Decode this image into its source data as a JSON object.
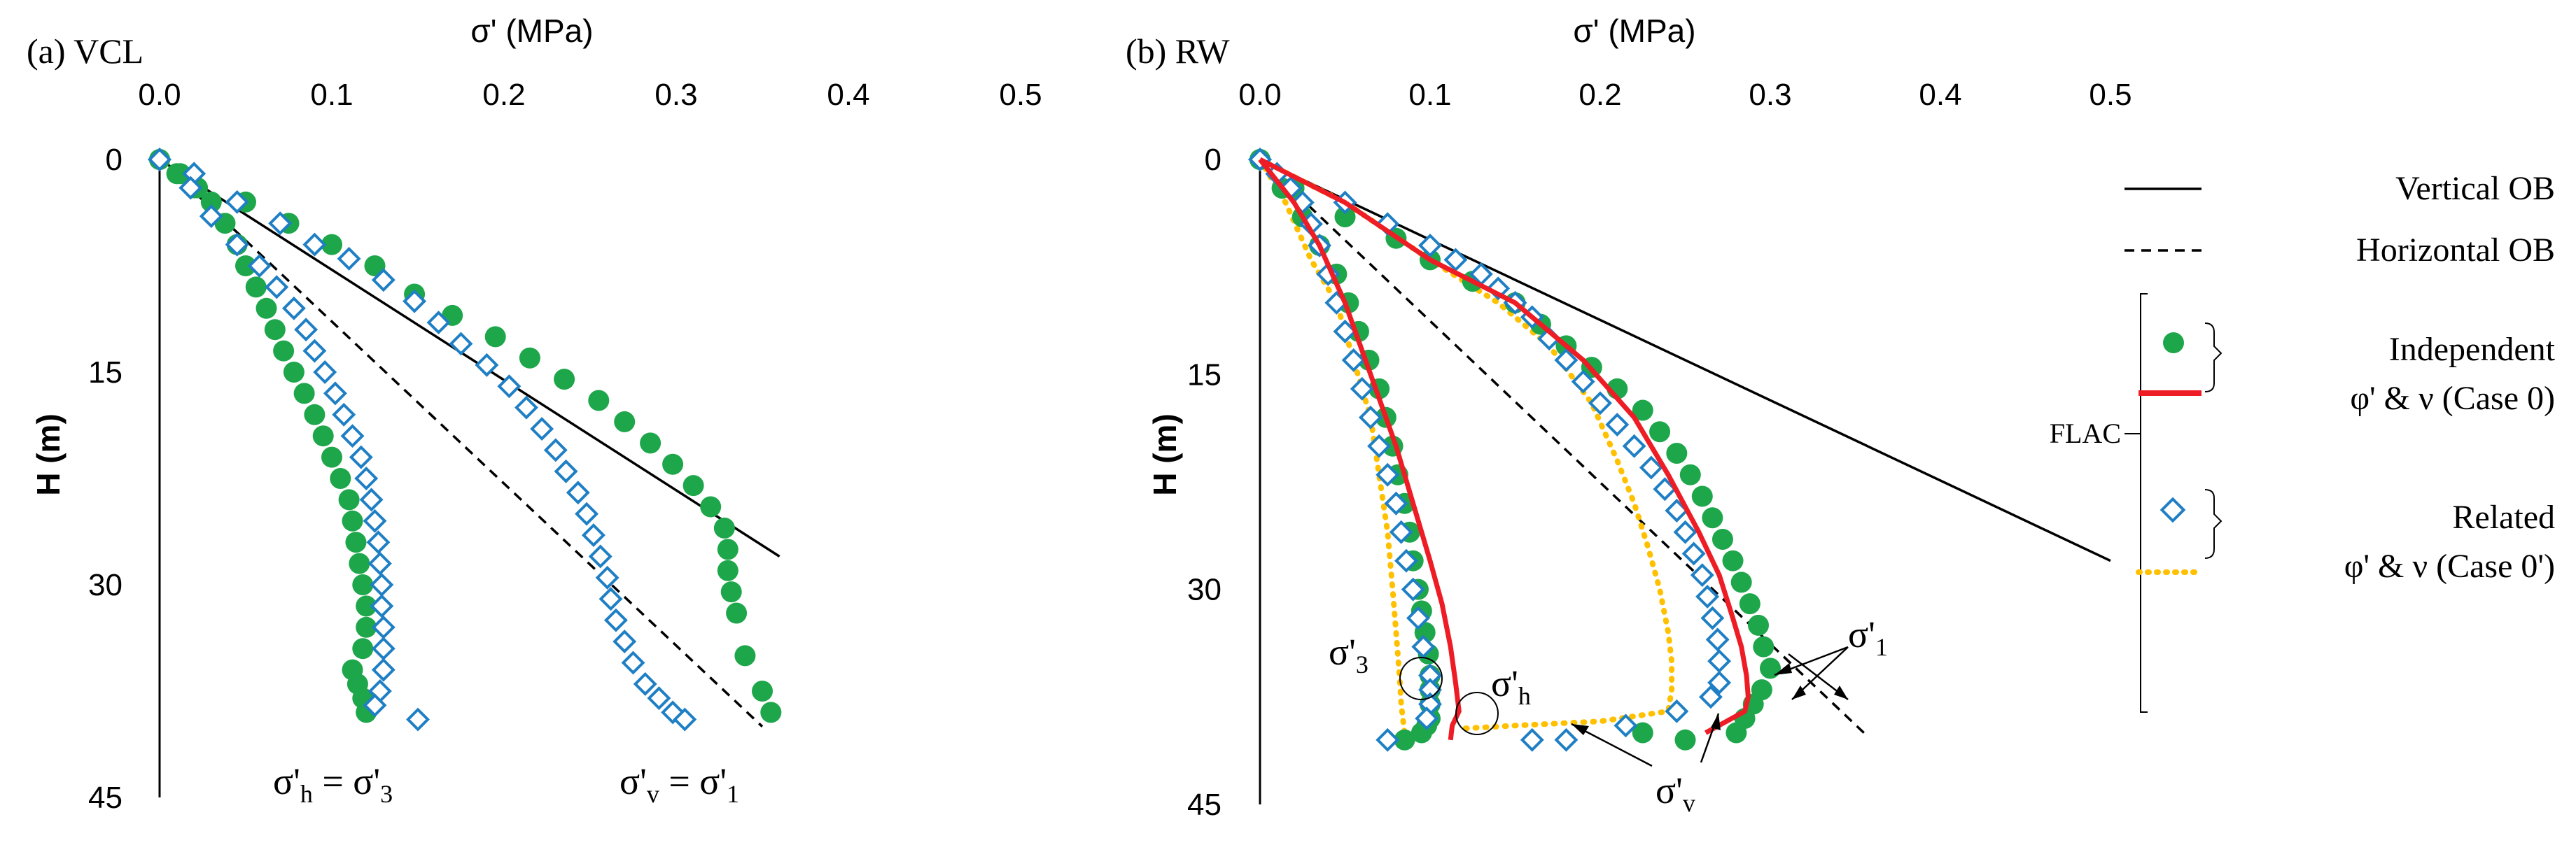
{
  "chart_data": [
    {
      "id": "a",
      "type": "line",
      "title": "(a) VCL",
      "xlabel": "σ' (MPa)",
      "ylabel": "H (m)",
      "xlim": [
        0,
        0.5
      ],
      "ylim": [
        0,
        45
      ],
      "y_inverted": true,
      "x_axis_position": "top",
      "xticks": [
        "0.0",
        "0.1",
        "0.2",
        "0.3",
        "0.4",
        "0.5"
      ],
      "yticks": [
        "0",
        "15",
        "30",
        "45"
      ],
      "series": [
        {
          "name": "Vertical OB",
          "style": "line-solid",
          "color": "#000000",
          "x": [
            0,
            0.36
          ],
          "y": [
            0,
            28
          ]
        },
        {
          "name": "Horizontal OB",
          "style": "line-dashed",
          "color": "#000000",
          "x": [
            0,
            0.35
          ],
          "y": [
            0,
            40
          ]
        },
        {
          "name": "Independent σ'v = σ'1",
          "style": "circle",
          "color": "#1ea64b",
          "x": [
            0,
            0.01,
            0.02,
            0.05,
            0.075,
            0.1,
            0.125,
            0.148,
            0.17,
            0.195,
            0.215,
            0.235,
            0.255,
            0.27,
            0.285,
            0.298,
            0.31,
            0.32,
            0.328,
            0.33,
            0.33,
            0.332,
            0.335,
            0.34,
            0.35,
            0.355
          ],
          "y": [
            0,
            1,
            2,
            3,
            4.5,
            6,
            7.5,
            9.5,
            11,
            12.5,
            14,
            15.5,
            17,
            18.5,
            20,
            21.5,
            23,
            24.5,
            26,
            27.5,
            29,
            30.5,
            32,
            35,
            37.5,
            39
          ]
        },
        {
          "name": "Related σ'v = σ'1",
          "style": "diamond",
          "color": "#1f7fc4",
          "x": [
            0,
            0.02,
            0.045,
            0.07,
            0.09,
            0.11,
            0.13,
            0.148,
            0.162,
            0.175,
            0.19,
            0.203,
            0.213,
            0.222,
            0.23,
            0.236,
            0.243,
            0.248,
            0.252,
            0.256,
            0.26,
            0.262,
            0.265,
            0.27,
            0.275,
            0.282,
            0.29,
            0.298,
            0.305
          ],
          "y": [
            0,
            1,
            3,
            4.5,
            6,
            7,
            8.5,
            10,
            11.5,
            13,
            14.5,
            16,
            17.5,
            19,
            20.5,
            22,
            23.5,
            25,
            26.5,
            28,
            29.5,
            31,
            32.5,
            34,
            35.5,
            37,
            38,
            39,
            39.5
          ]
        },
        {
          "name": "Independent σ'h = σ'3",
          "style": "circle",
          "color": "#1ea64b",
          "x": [
            0,
            0.012,
            0.022,
            0.03,
            0.038,
            0.045,
            0.05,
            0.056,
            0.062,
            0.067,
            0.072,
            0.078,
            0.084,
            0.09,
            0.095,
            0.1,
            0.105,
            0.11,
            0.112,
            0.114,
            0.116,
            0.118,
            0.12,
            0.12,
            0.118,
            0.112,
            0.115,
            0.118,
            0.12
          ],
          "y": [
            0,
            1,
            2,
            3,
            4.5,
            6,
            7.5,
            9,
            10.5,
            12,
            13.5,
            15,
            16.5,
            18,
            19.5,
            21,
            22.5,
            24,
            25.5,
            27,
            28.5,
            30,
            31.5,
            33,
            34.5,
            36,
            37,
            38,
            39
          ]
        },
        {
          "name": "Related σ'h = σ'3",
          "style": "diamond",
          "color": "#1f7fc4",
          "x": [
            0,
            0.018,
            0.03,
            0.045,
            0.058,
            0.068,
            0.078,
            0.085,
            0.09,
            0.096,
            0.102,
            0.107,
            0.112,
            0.117,
            0.12,
            0.123,
            0.125,
            0.127,
            0.128,
            0.129,
            0.129,
            0.13,
            0.13,
            0.13,
            0.128,
            0.125,
            0.15
          ],
          "y": [
            0,
            2,
            4,
            6,
            7.5,
            9,
            10.5,
            12,
            13.5,
            15,
            16.5,
            18,
            19.5,
            21,
            22.5,
            24,
            25.5,
            27,
            28.5,
            30,
            31.5,
            33,
            34.5,
            36,
            37.5,
            38.5,
            39.5
          ]
        }
      ],
      "annotations": [
        {
          "text": "σ'h = σ'3",
          "x": 0.17,
          "y": 43
        },
        {
          "text": "σ'v = σ'1",
          "x": 0.4,
          "y": 43
        }
      ]
    },
    {
      "id": "b",
      "type": "line",
      "title": "(b) RW",
      "xlabel": "σ' (MPa)",
      "ylabel": "H (m)",
      "xlim": [
        0,
        0.5
      ],
      "ylim": [
        0,
        45
      ],
      "y_inverted": true,
      "x_axis_position": "top",
      "xticks": [
        "0.0",
        "0.1",
        "0.2",
        "0.3",
        "0.4",
        "0.5"
      ],
      "yticks": [
        "0",
        "15",
        "30",
        "45"
      ],
      "series": [
        {
          "name": "Vertical OB",
          "style": "line-solid",
          "color": "#000000",
          "x": [
            0,
            0.5
          ],
          "y": [
            0,
            28
          ]
        },
        {
          "name": "Horizontal OB",
          "style": "line-dashed",
          "color": "#000000",
          "x": [
            0,
            0.355
          ],
          "y": [
            0,
            40
          ]
        },
        {
          "name": "Independent σ'1",
          "style": "circle",
          "color": "#1ea64b",
          "x": [
            0,
            0.02,
            0.05,
            0.08,
            0.1,
            0.125,
            0.15,
            0.165,
            0.18,
            0.195,
            0.21,
            0.225,
            0.235,
            0.245,
            0.253,
            0.26,
            0.266,
            0.272,
            0.278,
            0.283,
            0.288,
            0.293,
            0.296,
            0.3,
            0.295,
            0.29,
            0.285,
            0.28,
            0.25,
            0.225
          ],
          "y": [
            0,
            2,
            4,
            5.5,
            7,
            8.5,
            10,
            11.5,
            13,
            14.5,
            16,
            17.5,
            19,
            20.5,
            22,
            23.5,
            25,
            26.5,
            28,
            29.5,
            31,
            32.5,
            34,
            35.5,
            37,
            38,
            39,
            40,
            40.5,
            40
          ]
        },
        {
          "name": "Independent σ'3",
          "style": "circle",
          "color": "#1ea64b",
          "x": [
            0,
            0.013,
            0.025,
            0.035,
            0.045,
            0.052,
            0.058,
            0.064,
            0.07,
            0.074,
            0.078,
            0.081,
            0.085,
            0.088,
            0.09,
            0.093,
            0.095,
            0.097,
            0.099,
            0.1,
            0.1,
            0.1,
            0.1,
            0.098,
            0.095,
            0.085
          ],
          "y": [
            0,
            2,
            4,
            6,
            8,
            10,
            12,
            14,
            16,
            18,
            20,
            22,
            24,
            26,
            28,
            30,
            31.5,
            33,
            34.5,
            36,
            37,
            38,
            39,
            39.5,
            40,
            40.5
          ]
        },
        {
          "name": "Independent (Case 0) σ'1",
          "style": "line-red",
          "color": "#ee1c25",
          "x": [
            0,
            0.05,
            0.1,
            0.15,
            0.19,
            0.22,
            0.24,
            0.258,
            0.27,
            0.278,
            0.283,
            0.286,
            0.287,
            0.285,
            0.262
          ],
          "y": [
            0,
            3,
            7,
            10,
            14,
            18,
            22,
            26,
            29,
            32,
            34,
            36,
            37.5,
            38.5,
            40
          ]
        },
        {
          "name": "Independent (Case 0) σ'3",
          "style": "line-red",
          "color": "#ee1c25",
          "x": [
            0,
            0.02,
            0.035,
            0.05,
            0.065,
            0.08,
            0.09,
            0.1,
            0.107,
            0.112,
            0.115,
            0.117,
            0.113,
            0.112
          ],
          "y": [
            0,
            3,
            6,
            10,
            15,
            20,
            24,
            28,
            31,
            34,
            36.5,
            38.5,
            39.5,
            40.5
          ]
        },
        {
          "name": "Related σ'1",
          "style": "diamond",
          "color": "#1f7fc4",
          "x": [
            0,
            0.05,
            0.075,
            0.1,
            0.115,
            0.13,
            0.14,
            0.15,
            0.16,
            0.17,
            0.18,
            0.19,
            0.2,
            0.21,
            0.22,
            0.23,
            0.238,
            0.245,
            0.25,
            0.255,
            0.26,
            0.263,
            0.266,
            0.269,
            0.27,
            0.27,
            0.265,
            0.245,
            0.215,
            0.18
          ],
          "y": [
            0,
            3,
            4.5,
            6,
            7,
            8,
            9,
            10,
            11,
            12.5,
            14,
            15.5,
            17,
            18.5,
            20,
            21.5,
            23,
            24.5,
            26,
            27.5,
            29,
            30.5,
            32,
            33.5,
            35,
            36.5,
            37.5,
            38.5,
            39.5,
            40.5
          ]
        },
        {
          "name": "Related σ'3",
          "style": "diamond",
          "color": "#1f7fc4",
          "x": [
            0,
            0.01,
            0.018,
            0.025,
            0.03,
            0.035,
            0.04,
            0.045,
            0.05,
            0.055,
            0.06,
            0.065,
            0.07,
            0.075,
            0.08,
            0.083,
            0.086,
            0.09,
            0.093,
            0.096,
            0.1,
            0.1,
            0.1,
            0.098,
            0.075,
            0.16
          ],
          "y": [
            0,
            1,
            2,
            3,
            4.5,
            6,
            8,
            10,
            12,
            14,
            16,
            18,
            20,
            22,
            24,
            26,
            28,
            30,
            32,
            34,
            36,
            37,
            38,
            39,
            40.5,
            40.5
          ]
        },
        {
          "name": "Related (Case 0') σ'1",
          "style": "line-dotted",
          "color": "#ffc000",
          "x": [
            0,
            0.05,
            0.1,
            0.14,
            0.17,
            0.195,
            0.21,
            0.22,
            0.228,
            0.235,
            0.24,
            0.242,
            0.242,
            0.24,
            0.2,
            0.15,
            0.12
          ],
          "y": [
            0,
            3,
            7,
            10,
            13,
            17,
            21,
            24,
            27,
            30,
            33,
            35,
            37,
            38.5,
            39.2,
            39.5,
            39.7
          ]
        },
        {
          "name": "Related (Case 0') σ'3",
          "style": "line-dotted",
          "color": "#ffc000",
          "x": [
            0,
            0.015,
            0.03,
            0.045,
            0.055,
            0.065,
            0.07,
            0.075,
            0.078,
            0.08,
            0.082,
            0.083,
            0.085
          ],
          "y": [
            0,
            3,
            7,
            10,
            14,
            18,
            22,
            26,
            30,
            33,
            36,
            38,
            40
          ]
        }
      ],
      "annotations": [
        {
          "text": "σ'3",
          "x": 0.06,
          "y": 35
        },
        {
          "text": "σ'h",
          "x": 0.14,
          "y": 36.5
        },
        {
          "text": "σ'1",
          "x": 0.38,
          "y": 34
        },
        {
          "text": "σ'v",
          "x": 0.25,
          "y": 44
        }
      ]
    }
  ],
  "legend": {
    "vertical_ob": "Vertical  OB",
    "horizontal_ob": "Horizontal  OB",
    "independent_line1": "Independent",
    "independent_line2": "φ' & ν (Case 0)",
    "related_line1": "Related",
    "related_line2": "φ' & ν (Case 0')",
    "flac": "FLAC"
  }
}
